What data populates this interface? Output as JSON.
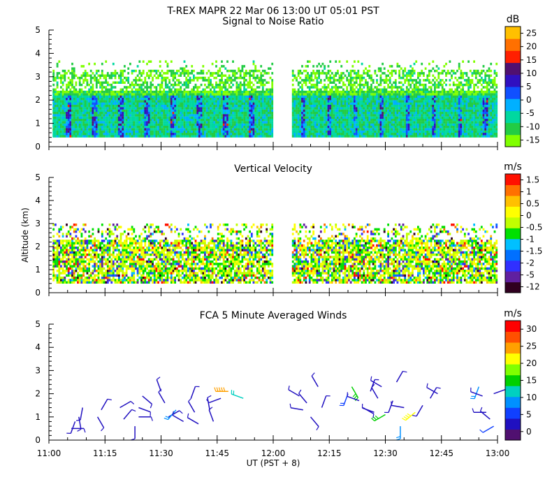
{
  "header": {
    "title": "T-REX   MAPR 22 Mar 06   13:00 UT   05:01   PST"
  },
  "colors": {
    "snr": [
      "#80ff00",
      "#22cc44",
      "#00d8a0",
      "#00b0ff",
      "#1050ff",
      "#3010c0",
      "#501070",
      "#ff2000",
      "#ff7000",
      "#ffc000"
    ],
    "vv": [
      "#300020",
      "#6020a0",
      "#3030ff",
      "#0070ff",
      "#00c0ff",
      "#00e000",
      "#c0ff00",
      "#ffff00",
      "#ffc000",
      "#ff7000",
      "#ff1000"
    ],
    "winds": [
      "#501070",
      "#2010c0",
      "#1040ff",
      "#0090ff",
      "#00d0c0",
      "#00d000",
      "#80ff00",
      "#ffff00",
      "#ffa000",
      "#ff5000",
      "#ff0000"
    ]
  },
  "chart_data": [
    {
      "type": "heatmap",
      "title": "Signal to Noise Ratio",
      "ylabel": "",
      "xlabel": "",
      "xlim": [
        "11:00",
        "13:00"
      ],
      "ylim": [
        0,
        5
      ],
      "yticks": [
        "0",
        "1",
        "2",
        "3",
        "4",
        "5"
      ],
      "xticks": [
        "11:00",
        "11:15",
        "11:30",
        "11:45",
        "12:00",
        "12:15",
        "12:30",
        "12:45",
        "13:00"
      ],
      "colorbar": {
        "unit": "dB",
        "ticks": [
          "-15",
          "-10",
          "-5",
          "0",
          "5",
          "10",
          "15",
          "20",
          "25"
        ]
      },
      "data_gap": [
        "12:00",
        "12:05"
      ]
    },
    {
      "type": "heatmap",
      "title": "Vertical Velocity",
      "ylabel": "Altitude (km)",
      "xlabel": "",
      "xlim": [
        "11:00",
        "13:00"
      ],
      "ylim": [
        0,
        5
      ],
      "yticks": [
        "0",
        "1",
        "2",
        "3",
        "4",
        "5"
      ],
      "xticks": [
        "11:00",
        "11:15",
        "11:30",
        "11:45",
        "12:00",
        "12:15",
        "12:30",
        "12:45",
        "13:00"
      ],
      "colorbar": {
        "unit": "m/s",
        "ticks": [
          "-12",
          "-5",
          "-2",
          "-1.5",
          "-1",
          "-0.5",
          "0",
          "0.5",
          "1",
          "1.5"
        ]
      },
      "data_gap": [
        "12:00",
        "12:05"
      ]
    },
    {
      "type": "scatter",
      "title": "FCA 5 Minute Averaged Winds",
      "ylabel": "",
      "xlabel": "UT  (PST + 8)",
      "xlim": [
        "11:00",
        "13:00"
      ],
      "ylim": [
        0,
        5
      ],
      "yticks": [
        "0",
        "1",
        "2",
        "3",
        "4",
        "5"
      ],
      "xticks": [
        "11:00",
        "11:15",
        "11:30",
        "11:45",
        "12:00",
        "12:15",
        "12:30",
        "12:45",
        "13:00"
      ],
      "colorbar": {
        "unit": "m/s",
        "ticks": [
          "0",
          "5",
          "10",
          "15",
          "20",
          "25",
          "30"
        ]
      },
      "barbs": [
        {
          "time": "11:06",
          "alt": 0.5,
          "speed": 4,
          "dir": 90
        },
        {
          "time": "11:07",
          "alt": 0.8,
          "speed": 3,
          "dir": 200
        },
        {
          "time": "11:08",
          "alt": 1.0,
          "speed": 4,
          "dir": 170
        },
        {
          "time": "11:09",
          "alt": 1.4,
          "speed": 3,
          "dir": 190
        },
        {
          "time": "11:13",
          "alt": 1.0,
          "speed": 4,
          "dir": 150
        },
        {
          "time": "11:14",
          "alt": 1.3,
          "speed": 3,
          "dir": 30
        },
        {
          "time": "11:19",
          "alt": 1.4,
          "speed": 3,
          "dir": 60
        },
        {
          "time": "11:20",
          "alt": 0.9,
          "speed": 5,
          "dir": 40
        },
        {
          "time": "11:23",
          "alt": 0.6,
          "speed": 4,
          "dir": 180
        },
        {
          "time": "11:24",
          "alt": 1.0,
          "speed": 5,
          "dir": 90
        },
        {
          "time": "11:24",
          "alt": 1.4,
          "speed": 5,
          "dir": 110
        },
        {
          "time": "11:25",
          "alt": 1.9,
          "speed": 4,
          "dir": 130
        },
        {
          "time": "11:30",
          "alt": 2.1,
          "speed": 5,
          "dir": 340
        },
        {
          "time": "11:31",
          "alt": 1.6,
          "speed": 4,
          "dir": 330
        },
        {
          "time": "11:32",
          "alt": 1.0,
          "speed": 5,
          "dir": 60
        },
        {
          "time": "11:34",
          "alt": 1.3,
          "speed": 10,
          "dir": 220
        },
        {
          "time": "11:36",
          "alt": 0.8,
          "speed": 5,
          "dir": 300
        },
        {
          "time": "11:38",
          "alt": 1.8,
          "speed": 5,
          "dir": 20
        },
        {
          "time": "11:39",
          "alt": 1.2,
          "speed": 5,
          "dir": 330
        },
        {
          "time": "11:40",
          "alt": 0.7,
          "speed": 4,
          "dir": 300
        },
        {
          "time": "11:43",
          "alt": 1.3,
          "speed": 4,
          "dir": 350
        },
        {
          "time": "11:44",
          "alt": 0.8,
          "speed": 5,
          "dir": 340
        },
        {
          "time": "11:46",
          "alt": 1.8,
          "speed": 5,
          "dir": 250
        },
        {
          "time": "11:48",
          "alt": 2.1,
          "speed": 24,
          "dir": 270
        },
        {
          "time": "11:52",
          "alt": 1.8,
          "speed": 12,
          "dir": 290
        },
        {
          "time": "12:07",
          "alt": 1.9,
          "speed": 4,
          "dir": 300
        },
        {
          "time": "12:08",
          "alt": 1.3,
          "speed": 5,
          "dir": 280
        },
        {
          "time": "12:09",
          "alt": 1.6,
          "speed": 5,
          "dir": 320
        },
        {
          "time": "12:10",
          "alt": 1.0,
          "speed": 5,
          "dir": 140
        },
        {
          "time": "12:12",
          "alt": 2.3,
          "speed": 4,
          "dir": 330
        },
        {
          "time": "12:13",
          "alt": 1.4,
          "speed": 5,
          "dir": 20
        },
        {
          "time": "12:20",
          "alt": 2.0,
          "speed": 8,
          "dir": 200
        },
        {
          "time": "12:21",
          "alt": 2.3,
          "speed": 15,
          "dir": 150
        },
        {
          "time": "12:23",
          "alt": 1.7,
          "speed": 5,
          "dir": 290
        },
        {
          "time": "12:24",
          "alt": 1.4,
          "speed": 5,
          "dir": 120
        },
        {
          "time": "12:26",
          "alt": 2.1,
          "speed": 4,
          "dir": 20
        },
        {
          "time": "12:27",
          "alt": 1.2,
          "speed": 5,
          "dir": 290
        },
        {
          "time": "12:28",
          "alt": 1.8,
          "speed": 5,
          "dir": 330
        },
        {
          "time": "12:29",
          "alt": 2.3,
          "speed": 5,
          "dir": 300
        },
        {
          "time": "12:30",
          "alt": 1.1,
          "speed": 15,
          "dir": 240
        },
        {
          "time": "12:32",
          "alt": 1.7,
          "speed": 5,
          "dir": 200
        },
        {
          "time": "12:33",
          "alt": 2.5,
          "speed": 4,
          "dir": 30
        },
        {
          "time": "12:34",
          "alt": 0.6,
          "speed": 10,
          "dir": 180
        },
        {
          "time": "12:35",
          "alt": 1.4,
          "speed": 5,
          "dir": 280
        },
        {
          "time": "12:38",
          "alt": 1.2,
          "speed": 22,
          "dir": 230
        },
        {
          "time": "12:40",
          "alt": 1.5,
          "speed": 5,
          "dir": 210
        },
        {
          "time": "12:42",
          "alt": 1.8,
          "speed": 5,
          "dir": 30
        },
        {
          "time": "12:44",
          "alt": 2.0,
          "speed": 4,
          "dir": 300
        },
        {
          "time": "12:55",
          "alt": 2.3,
          "speed": 10,
          "dir": 200
        },
        {
          "time": "12:56",
          "alt": 1.9,
          "speed": 5,
          "dir": 290
        },
        {
          "time": "12:57",
          "alt": 1.2,
          "speed": 5,
          "dir": 270
        },
        {
          "time": "12:58",
          "alt": 0.9,
          "speed": 5,
          "dir": 310
        },
        {
          "time": "12:59",
          "alt": 2.0,
          "speed": 5,
          "dir": 70
        },
        {
          "time": "12:59",
          "alt": 0.6,
          "speed": 6,
          "dir": 240
        }
      ]
    }
  ]
}
